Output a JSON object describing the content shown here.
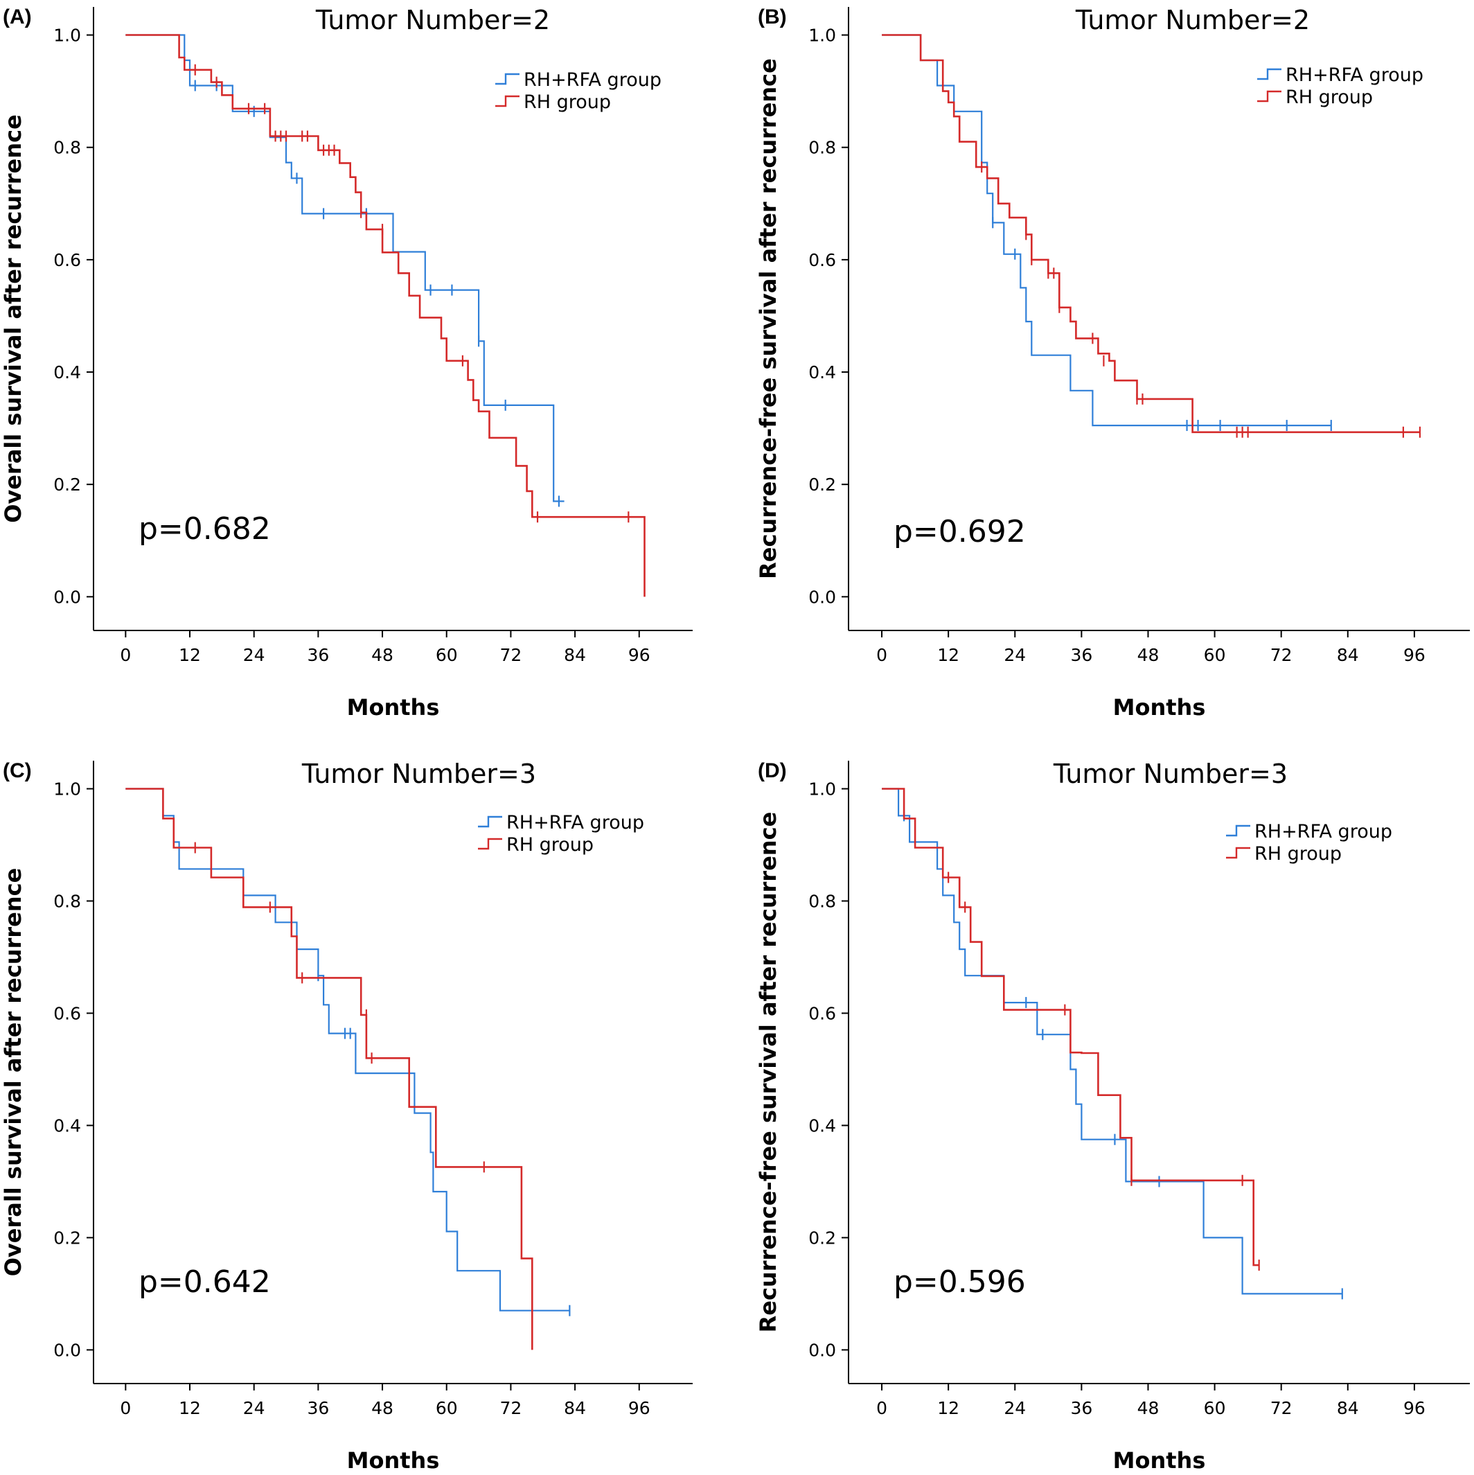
{
  "chart_data": [
    {
      "panel": "(A)",
      "type": "line",
      "title": "Tumor Number=2",
      "xlabel": "Months",
      "ylabel": "Overall survival after recurrence",
      "xticks": [
        "0",
        "12",
        "24",
        "36",
        "48",
        "60",
        "72",
        "84",
        "96"
      ],
      "yticks": [
        "0.0",
        "0.2",
        "0.4",
        "0.6",
        "0.8",
        "1.0"
      ],
      "xlim": [
        -6,
        106
      ],
      "ylim": [
        -0.06,
        1.05
      ],
      "pvalue": "p=0.682",
      "series": [
        {
          "name": "RH+RFA group",
          "color": "#2f7fd8",
          "steps": [
            [
              0,
              1.0
            ],
            [
              11,
              0.955
            ],
            [
              12,
              0.91
            ],
            [
              20,
              0.864
            ],
            [
              27,
              0.818
            ],
            [
              30,
              0.773
            ],
            [
              31,
              0.745
            ],
            [
              33,
              0.682
            ],
            [
              50,
              0.614
            ],
            [
              56,
              0.546
            ],
            [
              66,
              0.455
            ],
            [
              67,
              0.341
            ],
            [
              80,
              0.17
            ],
            [
              82,
              0.17
            ]
          ],
          "censors": [
            [
              13,
              0.91
            ],
            [
              17,
              0.91
            ],
            [
              24,
              0.864
            ],
            [
              32,
              0.745
            ],
            [
              37,
              0.682
            ],
            [
              45,
              0.682
            ],
            [
              57,
              0.546
            ],
            [
              61,
              0.546
            ],
            [
              66,
              0.455
            ],
            [
              71,
              0.341
            ],
            [
              81,
              0.17
            ]
          ]
        },
        {
          "name": "RH group",
          "color": "#d42a2a",
          "steps": [
            [
              0,
              1.0
            ],
            [
              10,
              0.96
            ],
            [
              11,
              0.938
            ],
            [
              16,
              0.916
            ],
            [
              18,
              0.893
            ],
            [
              20,
              0.869
            ],
            [
              27,
              0.82
            ],
            [
              36,
              0.795
            ],
            [
              40,
              0.772
            ],
            [
              42,
              0.747
            ],
            [
              43,
              0.72
            ],
            [
              44,
              0.684
            ],
            [
              45,
              0.654
            ],
            [
              48,
              0.613
            ],
            [
              51,
              0.576
            ],
            [
              53,
              0.536
            ],
            [
              55,
              0.497
            ],
            [
              59,
              0.46
            ],
            [
              60,
              0.42
            ],
            [
              64,
              0.386
            ],
            [
              65,
              0.35
            ],
            [
              66,
              0.33
            ],
            [
              68,
              0.283
            ],
            [
              73,
              0.233
            ],
            [
              75,
              0.188
            ],
            [
              76,
              0.142
            ],
            [
              97,
              0.0
            ]
          ],
          "censors": [
            [
              13,
              0.938
            ],
            [
              17,
              0.916
            ],
            [
              23,
              0.869
            ],
            [
              26,
              0.869
            ],
            [
              28,
              0.82
            ],
            [
              29,
              0.82
            ],
            [
              30,
              0.82
            ],
            [
              33,
              0.82
            ],
            [
              34,
              0.82
            ],
            [
              37,
              0.795
            ],
            [
              38,
              0.795
            ],
            [
              39,
              0.795
            ],
            [
              44,
              0.684
            ],
            [
              48,
              0.654
            ],
            [
              63,
              0.42
            ],
            [
              77,
              0.142
            ],
            [
              94,
              0.142
            ]
          ]
        }
      ]
    },
    {
      "panel": "(B)",
      "type": "line",
      "title": "Tumor Number=2",
      "xlabel": "Months",
      "ylabel": "Recurrence-free survival after recurrence",
      "xticks": [
        "0",
        "12",
        "24",
        "36",
        "48",
        "60",
        "72",
        "84",
        "96"
      ],
      "yticks": [
        "0.0",
        "0.2",
        "0.4",
        "0.6",
        "0.8",
        "1.0"
      ],
      "xlim": [
        -6,
        106
      ],
      "ylim": [
        -0.06,
        1.05
      ],
      "pvalue": "p=0.692",
      "series": [
        {
          "name": "RH+RFA group",
          "color": "#2f7fd8",
          "steps": [
            [
              0,
              1.0
            ],
            [
              7,
              0.955
            ],
            [
              10,
              0.91
            ],
            [
              13,
              0.864
            ],
            [
              18,
              0.773
            ],
            [
              19,
              0.718
            ],
            [
              20,
              0.666
            ],
            [
              22,
              0.61
            ],
            [
              25,
              0.55
            ],
            [
              26,
              0.49
            ],
            [
              27,
              0.43
            ],
            [
              34,
              0.367
            ],
            [
              38,
              0.305
            ],
            [
              81,
              0.305
            ]
          ],
          "censors": [
            [
              20,
              0.666
            ],
            [
              24,
              0.61
            ],
            [
              55,
              0.305
            ],
            [
              57,
              0.305
            ],
            [
              61,
              0.305
            ],
            [
              73,
              0.305
            ],
            [
              81,
              0.305
            ]
          ]
        },
        {
          "name": "RH group",
          "color": "#d42a2a",
          "steps": [
            [
              0,
              1.0
            ],
            [
              7,
              0.955
            ],
            [
              11,
              0.9
            ],
            [
              12,
              0.88
            ],
            [
              13,
              0.855
            ],
            [
              14,
              0.81
            ],
            [
              17,
              0.765
            ],
            [
              19,
              0.745
            ],
            [
              21,
              0.7
            ],
            [
              23,
              0.675
            ],
            [
              26,
              0.645
            ],
            [
              27,
              0.6
            ],
            [
              30,
              0.576
            ],
            [
              32,
              0.515
            ],
            [
              34,
              0.49
            ],
            [
              35,
              0.46
            ],
            [
              39,
              0.433
            ],
            [
              41,
              0.42
            ],
            [
              42,
              0.385
            ],
            [
              46,
              0.352
            ],
            [
              56,
              0.293
            ],
            [
              97,
              0.293
            ]
          ],
          "censors": [
            [
              18,
              0.765
            ],
            [
              26,
              0.645
            ],
            [
              27,
              0.6
            ],
            [
              30,
              0.576
            ],
            [
              31,
              0.576
            ],
            [
              32,
              0.515
            ],
            [
              38,
              0.46
            ],
            [
              40,
              0.42
            ],
            [
              46,
              0.352
            ],
            [
              47,
              0.352
            ],
            [
              64,
              0.293
            ],
            [
              65,
              0.293
            ],
            [
              66,
              0.293
            ],
            [
              94,
              0.293
            ],
            [
              97,
              0.293
            ]
          ]
        }
      ]
    },
    {
      "panel": "(C)",
      "type": "line",
      "title": "Tumor Number=3",
      "xlabel": "Months",
      "ylabel": "Overall survival after recurrence",
      "xticks": [
        "0",
        "12",
        "24",
        "36",
        "48",
        "60",
        "72",
        "84",
        "96"
      ],
      "yticks": [
        "0.0",
        "0.2",
        "0.4",
        "0.6",
        "0.8",
        "1.0"
      ],
      "xlim": [
        -6,
        106
      ],
      "ylim": [
        -0.06,
        1.05
      ],
      "pvalue": "p=0.642",
      "series": [
        {
          "name": "RH+RFA group",
          "color": "#2f7fd8",
          "steps": [
            [
              0,
              1.0
            ],
            [
              7,
              0.952
            ],
            [
              9,
              0.905
            ],
            [
              10,
              0.857
            ],
            [
              22,
              0.81
            ],
            [
              28,
              0.762
            ],
            [
              32,
              0.714
            ],
            [
              36,
              0.667
            ],
            [
              37,
              0.615
            ],
            [
              38,
              0.564
            ],
            [
              43,
              0.493
            ],
            [
              54,
              0.422
            ],
            [
              57,
              0.352
            ],
            [
              57.5,
              0.282
            ],
            [
              60,
              0.211
            ],
            [
              62,
              0.141
            ],
            [
              70,
              0.07
            ],
            [
              83,
              0.07
            ]
          ],
          "censors": [
            [
              36,
              0.667
            ],
            [
              41,
              0.564
            ],
            [
              42,
              0.564
            ],
            [
              83,
              0.07
            ]
          ]
        },
        {
          "name": "RH group",
          "color": "#d42a2a",
          "steps": [
            [
              0,
              1.0
            ],
            [
              7,
              0.947
            ],
            [
              9,
              0.895
            ],
            [
              16,
              0.842
            ],
            [
              22,
              0.789
            ],
            [
              31,
              0.737
            ],
            [
              32,
              0.663
            ],
            [
              44,
              0.597
            ],
            [
              45,
              0.52
            ],
            [
              53,
              0.433
            ],
            [
              58,
              0.326
            ],
            [
              74,
              0.163
            ],
            [
              76,
              0.0
            ]
          ],
          "censors": [
            [
              13,
              0.895
            ],
            [
              27,
              0.789
            ],
            [
              33,
              0.663
            ],
            [
              45,
              0.597
            ],
            [
              46,
              0.52
            ],
            [
              67,
              0.326
            ]
          ]
        }
      ]
    },
    {
      "panel": "(D)",
      "type": "line",
      "title": "Tumor Number=3",
      "xlabel": "Months",
      "ylabel": "Recurrence-free survival after recurrence",
      "xticks": [
        "0",
        "12",
        "24",
        "36",
        "48",
        "60",
        "72",
        "84",
        "96"
      ],
      "yticks": [
        "0.0",
        "0.2",
        "0.4",
        "0.6",
        "0.8",
        "1.0"
      ],
      "xlim": [
        -6,
        106
      ],
      "ylim": [
        -0.06,
        1.05
      ],
      "pvalue": "p=0.596",
      "series": [
        {
          "name": "RH+RFA group",
          "color": "#2f7fd8",
          "steps": [
            [
              0,
              1.0
            ],
            [
              3,
              0.952
            ],
            [
              5,
              0.905
            ],
            [
              10,
              0.857
            ],
            [
              11,
              0.81
            ],
            [
              13,
              0.762
            ],
            [
              14,
              0.714
            ],
            [
              15,
              0.667
            ],
            [
              22,
              0.619
            ],
            [
              28,
              0.562
            ],
            [
              34,
              0.5
            ],
            [
              35,
              0.438
            ],
            [
              36,
              0.375
            ],
            [
              44,
              0.3
            ],
            [
              58,
              0.2
            ],
            [
              65,
              0.1
            ],
            [
              83,
              0.1
            ]
          ],
          "censors": [
            [
              4,
              0.952
            ],
            [
              26,
              0.619
            ],
            [
              29,
              0.562
            ],
            [
              42,
              0.375
            ],
            [
              50,
              0.3
            ],
            [
              83,
              0.1
            ]
          ]
        },
        {
          "name": "RH group",
          "color": "#d42a2a",
          "steps": [
            [
              0,
              1.0
            ],
            [
              4,
              0.947
            ],
            [
              6,
              0.895
            ],
            [
              11,
              0.842
            ],
            [
              14,
              0.789
            ],
            [
              16,
              0.727
            ],
            [
              18,
              0.666
            ],
            [
              22,
              0.606
            ],
            [
              34,
              0.53
            ],
            [
              36,
              0.529
            ],
            [
              39,
              0.454
            ],
            [
              43,
              0.378
            ],
            [
              45,
              0.302
            ],
            [
              67,
              0.151
            ],
            [
              68,
              0.151
            ]
          ],
          "censors": [
            [
              12,
              0.842
            ],
            [
              15,
              0.789
            ],
            [
              33,
              0.606
            ],
            [
              45,
              0.302
            ],
            [
              65,
              0.302
            ],
            [
              68,
              0.151
            ]
          ]
        }
      ]
    }
  ]
}
